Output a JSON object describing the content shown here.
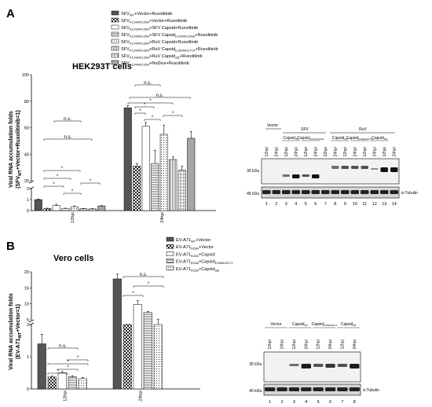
{
  "panel_A": {
    "label": "A",
    "cell_line": "HEK293T cells",
    "ylabel_line1": "Viral RNA accumulation folds",
    "ylabel_line2": "(SFV",
    "ylabel_sub": "WT",
    "ylabel_line2_end": "+Vector+Ruxolitinib=1)",
    "yticks_upper": [
      "20",
      "40",
      "60",
      "80",
      "100"
    ],
    "yticks_lower": [
      "0",
      "1",
      "2"
    ],
    "x_groups": [
      "12hpi",
      "24hpi"
    ],
    "ns": [
      "n.s.",
      "n.s.",
      "n.s.",
      "n.s."
    ],
    "star": "*",
    "legend": [
      {
        "main": "SFV",
        "sub": "WT",
        "rest": "+Vector+Ruxolitinib",
        "pattern": "solid"
      },
      {
        "main": "SFV",
        "sub": "K124A/K126A",
        "rest": "+Vector+Ruxolitinib",
        "pattern": "check"
      },
      {
        "main": "SFV",
        "sub": "K124A/K126A",
        "rest": "+SFV Capsid+Ruxolitinib",
        "pattern": "white"
      },
      {
        "main": "SFV",
        "sub": "K124A/K126A",
        "rest": "+SFV Capsid",
        "sub2": "K124A/K126A",
        "rest2": "+Ruxolitinib",
        "pattern": "hstripe"
      },
      {
        "main": "SFV",
        "sub": "K124A/K126A",
        "rest": "+RuV Capsid+Ruxolitinib",
        "pattern": "dots"
      },
      {
        "main": "SFV",
        "sub": "K124A/K126A",
        "rest": "+RuV Capsid",
        "sub2": "E169A/D171A",
        "rest2": "+Ruxolitinib",
        "pattern": "vstripe"
      },
      {
        "main": "SFV",
        "sub": "K124A/K126A",
        "rest": "+RuV Capsid",
        "sub2": "ΔB",
        "rest2": "+Ruxolitinib",
        "pattern": "grid"
      },
      {
        "main": "SFV",
        "sub": "K124A/K126A",
        "rest": "+NoDice+Ruxolitinib",
        "pattern": "gray"
      }
    ],
    "blot": {
      "virus_labels": [
        "SFV",
        "RuV"
      ],
      "group_labels": [
        "Vector",
        "Capsid",
        "Capsid",
        "Capsid",
        "Capsid",
        "Capsid"
      ],
      "group_subs": [
        "",
        "WT",
        "K124A/K126A",
        "WT",
        "E169A/D171A",
        "ΔB"
      ],
      "lane_times": [
        "12hpi",
        "24hpi",
        "12hpi",
        "24hpi",
        "12hpi",
        "24hpi",
        "12hpi",
        "24hpi",
        "12hpi",
        "24hpi",
        "12hpi",
        "24hpi",
        "12hpi",
        "24hpi"
      ],
      "lane_numbers": [
        "1",
        "2",
        "3",
        "4",
        "5",
        "6",
        "7",
        "8",
        "9",
        "10",
        "11",
        "12",
        "13",
        "14"
      ],
      "marker_top": "35 kDa",
      "marker_bottom": "45 kDa",
      "loading": "α-Tubulin"
    }
  },
  "panel_B": {
    "label": "B",
    "cell_line": "Vero cells",
    "ylabel_line1": "Viral RNA accumulation folds",
    "ylabel_line2": "(EV-A71",
    "ylabel_sub": "WT",
    "ylabel_line2_end": "+Vector=1)",
    "yticks_upper": [
      "5",
      "10",
      "15",
      "20"
    ],
    "yticks_lower": [
      "0",
      "1",
      "2"
    ],
    "x_groups": [
      "12hpi",
      "24hpi"
    ],
    "ns": [
      "n.s.",
      "n.s."
    ],
    "star": "*",
    "legend": [
      {
        "main": "EV-A71",
        "sub": "WT",
        "rest": "+Vector",
        "pattern": "solid"
      },
      {
        "main": "EV-A71",
        "sub": "D23A",
        "rest": "+Vector",
        "pattern": "check"
      },
      {
        "main": "EV-A71",
        "sub": "D23A",
        "rest": "+Capsid",
        "pattern": "white"
      },
      {
        "main": "EV-A71",
        "sub": "D23A",
        "rest": "+Capsid",
        "sub2": "E169A/D171",
        "rest2": "",
        "pattern": "hstripe"
      },
      {
        "main": "EV-A71",
        "sub": "D23A",
        "rest": "+Capsid",
        "sub2": "ΔB",
        "rest2": "",
        "pattern": "dots"
      }
    ],
    "blot": {
      "group_labels": [
        "Vector",
        "Capsid",
        "Capsid",
        "Capsid"
      ],
      "group_subs": [
        "",
        "WT",
        "E169A/D171",
        "ΔB"
      ],
      "lane_times": [
        "12hpi",
        "24hpi",
        "12hpi",
        "24hpi",
        "12hpi",
        "24hpi",
        "12hpi",
        "24hpi"
      ],
      "lane_numbers": [
        "1",
        "2",
        "3",
        "4",
        "5",
        "6",
        "7",
        "8"
      ],
      "marker_top": "35 kDa",
      "marker_bottom": "45 kDa",
      "loading": "α-Tubulin"
    }
  },
  "chart_data": [
    {
      "type": "bar",
      "title": "HEK293T cells",
      "xlabel": "",
      "ylabel": "Viral RNA accumulation folds (SFV WT +Vector+Ruxolitinib=1)",
      "axis_break": {
        "lower": [
          0,
          2
        ],
        "upper": [
          20,
          100
        ]
      },
      "categories": [
        "12hpi",
        "24hpi"
      ],
      "series": [
        {
          "name": "SFV WT +Vector+Ruxolitinib",
          "values": [
            1.0,
            75
          ],
          "errors": [
            0.05,
            1.5
          ]
        },
        {
          "name": "SFV K124A/K126A +Vector+Ruxolitinib",
          "values": [
            0.18,
            31
          ],
          "errors": [
            0.04,
            2
          ]
        },
        {
          "name": "SFV K124A/K126A +SFV Capsid+Ruxolitinib",
          "values": [
            0.45,
            61
          ],
          "errors": [
            0.12,
            3
          ]
        },
        {
          "name": "SFV K124A/K126A +SFV Capsid K124A/K126A +Ruxolitinib",
          "values": [
            0.18,
            33
          ],
          "errors": [
            0.04,
            10
          ]
        },
        {
          "name": "SFV K124A/K126A +RuV Capsid+Ruxolitinib",
          "values": [
            0.35,
            55
          ],
          "errors": [
            0.07,
            7
          ]
        },
        {
          "name": "SFV K124A/K126A +RuV Capsid E169A/D171A +Ruxolitinib",
          "values": [
            0.17,
            36
          ],
          "errors": [
            0.03,
            2
          ]
        },
        {
          "name": "SFV K124A/K126A +RuV Capsid ΔB +Ruxolitinib",
          "values": [
            0.15,
            28
          ],
          "errors": [
            0.03,
            3
          ]
        },
        {
          "name": "SFV K124A/K126A +NoDice+Ruxolitinib",
          "values": [
            0.42,
            52
          ],
          "errors": [
            0.04,
            5
          ]
        }
      ]
    },
    {
      "type": "bar",
      "title": "Vero cells",
      "xlabel": "",
      "ylabel": "Viral RNA accumulation folds (EV-A71 WT +Vector=1)",
      "axis_break": {
        "lower": [
          0,
          2
        ],
        "upper": [
          5,
          20
        ]
      },
      "categories": [
        "12hpi",
        "24hpi"
      ],
      "series": [
        {
          "name": "EV-A71 WT +Vector",
          "values": [
            1.4,
            17.8
          ],
          "errors": [
            0.3,
            1.5
          ]
        },
        {
          "name": "EV-A71 D23A +Vector",
          "values": [
            0.37,
            4.4
          ],
          "errors": [
            0.03,
            0.2
          ]
        },
        {
          "name": "EV-A71 D23A +Capsid",
          "values": [
            0.5,
            9.8
          ],
          "errors": [
            0.04,
            1.2
          ]
        },
        {
          "name": "EV-A71 D23A +Capsid E169A/D171",
          "values": [
            0.38,
            7.3
          ],
          "errors": [
            0.03,
            0.3
          ]
        },
        {
          "name": "EV-A71 D23A +Capsid ΔB",
          "values": [
            0.32,
            4.6
          ],
          "errors": [
            0.03,
            0.6
          ]
        }
      ]
    }
  ]
}
